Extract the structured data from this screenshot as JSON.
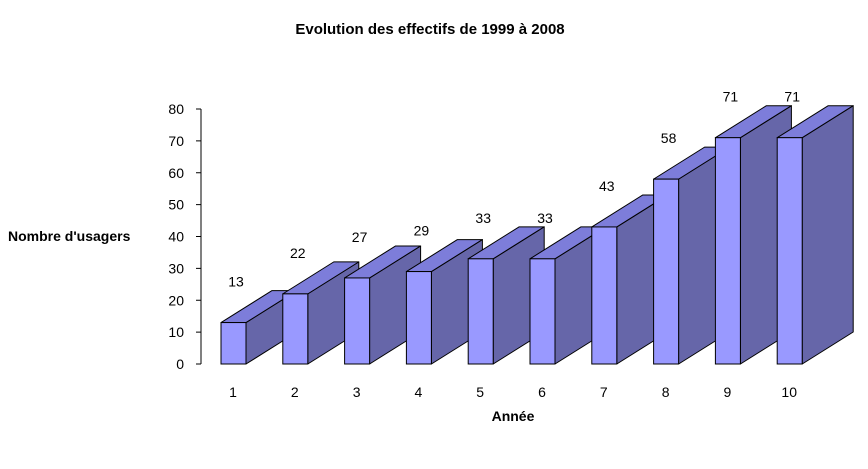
{
  "colors": {
    "bar_front": "#9999ff",
    "bar_top": "#7d7dda",
    "bar_side": "#6666a9",
    "axis": "#000000",
    "text": "#000000"
  },
  "chart_data": {
    "type": "bar",
    "title": "Evolution des effectifs de 1999 à 2008",
    "xlabel": "Année",
    "ylabel": "Nombre d'usagers",
    "categories": [
      "1",
      "2",
      "3",
      "4",
      "5",
      "6",
      "7",
      "8",
      "9",
      "10"
    ],
    "values": [
      13,
      22,
      27,
      29,
      33,
      33,
      43,
      58,
      71,
      71
    ],
    "ylim": [
      0,
      80
    ],
    "yticks": [
      0,
      10,
      20,
      30,
      40,
      50,
      60,
      70,
      80
    ],
    "grid": false,
    "legend": "none",
    "style": "3d-column",
    "data_labels": true
  }
}
